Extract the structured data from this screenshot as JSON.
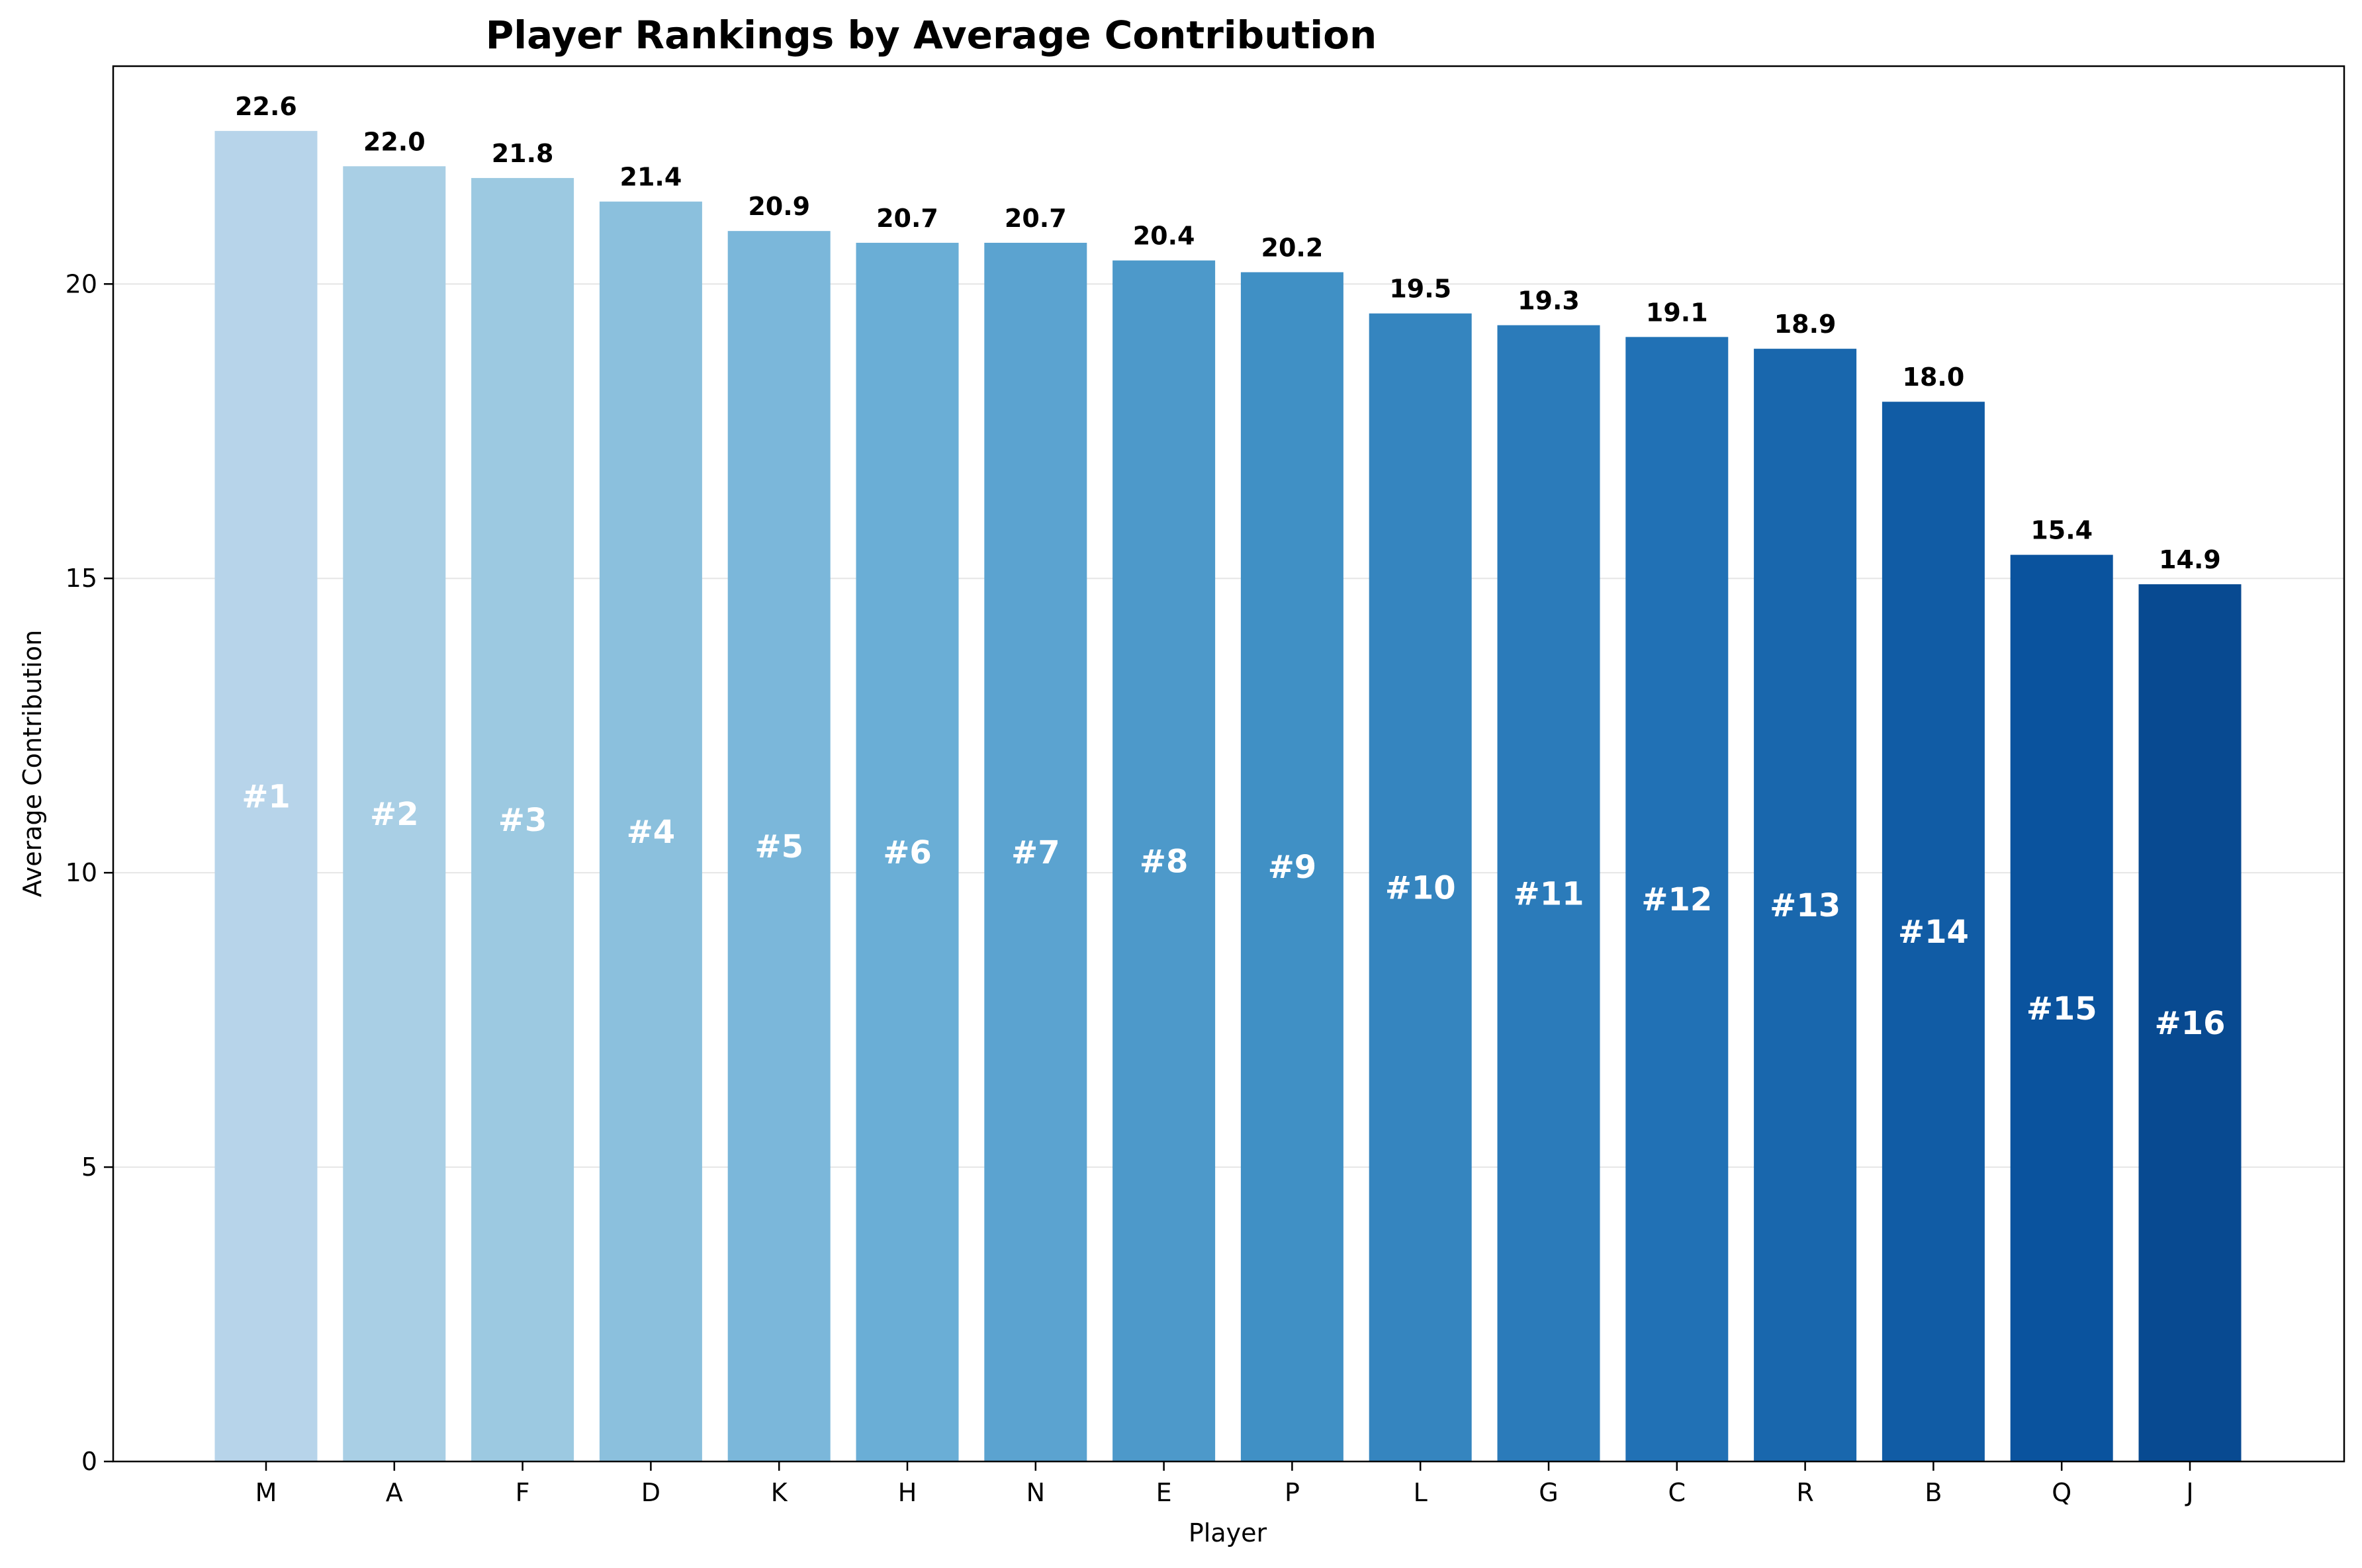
{
  "chart_data": {
    "type": "bar",
    "title": "Player Rankings by Average Contribution",
    "xlabel": "Player",
    "ylabel": "Average Contribution",
    "categories": [
      "M",
      "A",
      "F",
      "D",
      "K",
      "H",
      "N",
      "E",
      "P",
      "L",
      "G",
      "C",
      "R",
      "B",
      "Q",
      "J"
    ],
    "values": [
      22.6,
      22.0,
      21.8,
      21.4,
      20.9,
      20.7,
      20.7,
      20.4,
      20.2,
      19.5,
      19.3,
      19.1,
      18.9,
      18.0,
      15.4,
      14.9
    ],
    "value_labels": [
      "22.6",
      "22.0",
      "21.8",
      "21.4",
      "20.9",
      "20.7",
      "20.7",
      "20.4",
      "20.2",
      "19.5",
      "19.3",
      "19.1",
      "18.9",
      "18.0",
      "15.4",
      "14.9"
    ],
    "rank_labels": [
      "#1",
      "#2",
      "#3",
      "#4",
      "#5",
      "#6",
      "#7",
      "#8",
      "#9",
      "#10",
      "#11",
      "#12",
      "#13",
      "#14",
      "#15",
      "#16"
    ],
    "ylim": [
      0,
      23.7
    ],
    "yticks": [
      0,
      5,
      10,
      15,
      20
    ],
    "ytick_labels": [
      "0",
      "5",
      "10",
      "15",
      "20"
    ],
    "grid": "horizontal",
    "colors": [
      "#b7d4ea",
      "#a9cfe5",
      "#9cc9e1",
      "#8bc0dd",
      "#7bb7da",
      "#6aaed6",
      "#5ba3d0",
      "#4d99ca",
      "#4090c5",
      "#3585bf",
      "#2b7bba",
      "#2171b5",
      "#1967ad",
      "#115ca5",
      "#0a539e",
      "#084a91"
    ]
  }
}
